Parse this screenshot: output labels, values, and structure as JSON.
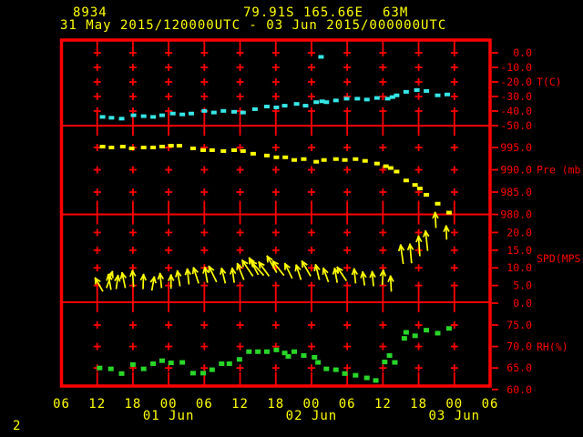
{
  "header": {
    "station_id": "8934",
    "latitude": "79.91S",
    "longitude": "165.66E",
    "elevation": "63M",
    "period": "31 May 2015/120000UTC - 03 Jun 2015/000000UTC"
  },
  "footer": {
    "page_number": "2"
  },
  "colors": {
    "background": "#000000",
    "grid": "#ff0000",
    "text": "#ffff00",
    "temperature": "#35e7e7",
    "pressure": "#ffff00",
    "wind": "#ffff00",
    "humidity": "#28d628"
  },
  "x_axis": {
    "unit": "hours from 31 May 2015 06UTC",
    "span_hours": 72,
    "grid_hours": [
      6,
      12,
      18,
      24,
      30,
      36,
      42,
      48,
      54,
      60,
      66
    ],
    "hour_labels": [
      {
        "label": "06",
        "h": 0
      },
      {
        "label": "12",
        "h": 6
      },
      {
        "label": "18",
        "h": 12
      },
      {
        "label": "00",
        "h": 18
      },
      {
        "label": "06",
        "h": 24
      },
      {
        "label": "12",
        "h": 30
      },
      {
        "label": "18",
        "h": 36
      },
      {
        "label": "00",
        "h": 42
      },
      {
        "label": "06",
        "h": 48
      },
      {
        "label": "12",
        "h": 54
      },
      {
        "label": "18",
        "h": 60
      },
      {
        "label": "00",
        "h": 66
      },
      {
        "label": "06",
        "h": 72
      }
    ],
    "date_labels": [
      {
        "label": "01 Jun",
        "h": 18
      },
      {
        "label": "02 Jun",
        "h": 42
      },
      {
        "label": "03 Jun",
        "h": 66
      }
    ]
  },
  "chart_data": [
    {
      "type": "scatter",
      "name": "temperature",
      "ylabel": "T(C)",
      "legend_position": "right",
      "grid": true,
      "yticks": [
        {
          "label": "0.0",
          "v": 0
        },
        {
          "label": "-10.0",
          "v": -10
        },
        {
          "label": "-20.0",
          "v": -20
        },
        {
          "label": "-30.0",
          "v": -30
        },
        {
          "label": "-40.0",
          "v": -40
        },
        {
          "label": "-50.0",
          "v": -50
        }
      ],
      "ylim": [
        -50,
        0
      ],
      "points": [
        [
          6.9,
          -44.0
        ],
        [
          8.4,
          -44.6
        ],
        [
          10.1,
          -45.2
        ],
        [
          12.1,
          -42.9
        ],
        [
          13.8,
          -43.5
        ],
        [
          15.4,
          -44.0
        ],
        [
          16.9,
          -42.9
        ],
        [
          18.7,
          -41.7
        ],
        [
          20.3,
          -42.3
        ],
        [
          21.8,
          -41.7
        ],
        [
          24.0,
          -39.9
        ],
        [
          25.6,
          -41.0
        ],
        [
          27.2,
          -39.9
        ],
        [
          29.0,
          -40.5
        ],
        [
          30.5,
          -41.0
        ],
        [
          32.5,
          -38.7
        ],
        [
          34.5,
          -36.9
        ],
        [
          36.1,
          -37.5
        ],
        [
          37.5,
          -36.3
        ],
        [
          39.5,
          -35.1
        ],
        [
          41.0,
          -36.3
        ],
        [
          42.8,
          -33.9
        ],
        [
          43.8,
          -33.3
        ],
        [
          44.5,
          -33.9
        ],
        [
          46.1,
          -32.7
        ],
        [
          47.9,
          -31.5
        ],
        [
          49.7,
          -31.5
        ],
        [
          51.3,
          -32.1
        ],
        [
          53.0,
          -31.0
        ],
        [
          54.8,
          -31.5
        ],
        [
          55.6,
          -30.4
        ],
        [
          56.3,
          -29.2
        ],
        [
          57.9,
          -26.8
        ],
        [
          59.7,
          -25.6
        ],
        [
          61.3,
          -26.2
        ],
        [
          63.2,
          -29.2
        ],
        [
          64.8,
          -28.6
        ]
      ],
      "outlier_points": [
        [
          43.6,
          -2.8
        ]
      ]
    },
    {
      "type": "scatter",
      "name": "pressure",
      "ylabel": "Pre (mb)",
      "yticks": [
        {
          "label": "995.0",
          "v": 995
        },
        {
          "label": "990.0",
          "v": 990
        },
        {
          "label": "985.0",
          "v": 985
        },
        {
          "label": "980.0",
          "v": 980
        }
      ],
      "ylim": [
        980,
        995
      ],
      "points": [
        [
          6.9,
          995.2
        ],
        [
          8.4,
          995.0
        ],
        [
          10.3,
          995.2
        ],
        [
          11.8,
          994.8
        ],
        [
          13.8,
          995.0
        ],
        [
          15.4,
          995.0
        ],
        [
          16.9,
          995.2
        ],
        [
          18.4,
          995.4
        ],
        [
          19.8,
          995.4
        ],
        [
          22.1,
          994.8
        ],
        [
          23.8,
          994.4
        ],
        [
          25.3,
          994.4
        ],
        [
          27.2,
          994.2
        ],
        [
          29.0,
          994.4
        ],
        [
          30.5,
          994.2
        ],
        [
          32.2,
          993.6
        ],
        [
          34.5,
          993.2
        ],
        [
          36.1,
          992.8
        ],
        [
          37.6,
          992.8
        ],
        [
          39.1,
          992.2
        ],
        [
          40.7,
          992.4
        ],
        [
          42.8,
          991.8
        ],
        [
          44.1,
          992.2
        ],
        [
          46.1,
          992.4
        ],
        [
          47.6,
          992.2
        ],
        [
          49.4,
          992.4
        ],
        [
          51.0,
          992.0
        ],
        [
          53.0,
          991.4
        ],
        [
          54.5,
          990.8
        ],
        [
          55.3,
          990.4
        ],
        [
          56.3,
          989.6
        ],
        [
          57.9,
          987.6
        ],
        [
          59.4,
          986.6
        ],
        [
          60.2,
          985.8
        ],
        [
          61.3,
          984.4
        ],
        [
          63.2,
          982.4
        ],
        [
          65.1,
          980.4
        ]
      ]
    },
    {
      "type": "wind_arrow",
      "name": "wind-speed",
      "ylabel": "SPD(MPS)",
      "point_format": "[hour, speed_mps, arrow_angle_deg_from_up, arrow_length_px]",
      "yticks": [
        {
          "label": "20.0",
          "v": 20
        },
        {
          "label": "15.0",
          "v": 15
        },
        {
          "label": "10.0",
          "v": 10
        },
        {
          "label": "5.0",
          "v": 5
        },
        {
          "label": "0.0",
          "v": 0
        }
      ],
      "ylim": [
        0,
        25
      ],
      "points": [
        [
          6.9,
          3.5,
          -30,
          16
        ],
        [
          7.6,
          4.5,
          20,
          18
        ],
        [
          8.3,
          4.0,
          -10,
          16
        ],
        [
          9.2,
          4.2,
          8,
          14
        ],
        [
          10.7,
          4.5,
          -12,
          16
        ],
        [
          12.1,
          4.8,
          -4,
          17
        ],
        [
          13.7,
          4.2,
          2,
          15
        ],
        [
          15.2,
          3.8,
          10,
          14
        ],
        [
          16.8,
          4.5,
          -6,
          15
        ],
        [
          18.4,
          4.3,
          0,
          14
        ],
        [
          19.9,
          5.0,
          -10,
          16
        ],
        [
          21.4,
          5.5,
          -6,
          16
        ],
        [
          23.0,
          5.8,
          -18,
          17
        ],
        [
          24.5,
          6.0,
          -10,
          16
        ],
        [
          26.0,
          6.2,
          -26,
          18
        ],
        [
          27.5,
          5.8,
          -14,
          16
        ],
        [
          29.0,
          6.0,
          -8,
          15
        ],
        [
          30.6,
          6.8,
          -22,
          18
        ],
        [
          32.1,
          7.8,
          -34,
          20
        ],
        [
          33.0,
          8.2,
          -28,
          20
        ],
        [
          33.9,
          8.0,
          -42,
          20
        ],
        [
          34.8,
          7.8,
          -36,
          18
        ],
        [
          36.1,
          8.8,
          -30,
          20
        ],
        [
          37.3,
          8.0,
          -38,
          19
        ],
        [
          38.7,
          7.2,
          -26,
          17
        ],
        [
          40.2,
          6.8,
          -18,
          16
        ],
        [
          41.8,
          7.8,
          -30,
          18
        ],
        [
          43.3,
          6.8,
          -14,
          16
        ],
        [
          44.8,
          6.2,
          -20,
          15
        ],
        [
          46.3,
          6.0,
          -10,
          15
        ],
        [
          47.8,
          6.5,
          -34,
          17
        ],
        [
          49.4,
          5.8,
          -6,
          15
        ],
        [
          50.9,
          5.2,
          -8,
          14
        ],
        [
          52.4,
          5.0,
          -5,
          15
        ],
        [
          53.9,
          5.4,
          4,
          15
        ],
        [
          55.4,
          3.5,
          -3,
          16
        ],
        [
          57.4,
          11.3,
          -8,
          20
        ],
        [
          58.8,
          11.5,
          -5,
          20
        ],
        [
          60.2,
          13.5,
          -4,
          21
        ],
        [
          61.5,
          15.0,
          -6,
          21
        ],
        [
          62.9,
          21.5,
          -3,
          16
        ],
        [
          64.7,
          18.2,
          -2,
          14
        ]
      ]
    },
    {
      "type": "scatter",
      "name": "relative-humidity",
      "ylabel": "RH(%)",
      "yticks": [
        {
          "label": "75.0",
          "v": 75
        },
        {
          "label": "70.0",
          "v": 70
        },
        {
          "label": "65.0",
          "v": 65
        },
        {
          "label": "60.0",
          "v": 60
        }
      ],
      "ylim": [
        60,
        75
      ],
      "points": [
        [
          6.4,
          65.0
        ],
        [
          8.3,
          64.8
        ],
        [
          10.1,
          63.7
        ],
        [
          12.0,
          65.8
        ],
        [
          13.8,
          64.8
        ],
        [
          15.4,
          66.0
        ],
        [
          16.9,
          66.7
        ],
        [
          18.4,
          66.2
        ],
        [
          20.3,
          66.3
        ],
        [
          22.1,
          63.8
        ],
        [
          23.8,
          63.8
        ],
        [
          25.3,
          64.6
        ],
        [
          26.9,
          66.0
        ],
        [
          28.2,
          66.0
        ],
        [
          29.9,
          67.0
        ],
        [
          31.5,
          68.8
        ],
        [
          33.0,
          68.8
        ],
        [
          34.5,
          68.8
        ],
        [
          36.1,
          69.2
        ],
        [
          37.5,
          68.5
        ],
        [
          38.1,
          67.7
        ],
        [
          39.1,
          68.8
        ],
        [
          40.7,
          67.9
        ],
        [
          42.5,
          67.5
        ],
        [
          43.1,
          66.3
        ],
        [
          44.5,
          64.8
        ],
        [
          46.1,
          64.6
        ],
        [
          47.6,
          63.7
        ],
        [
          49.4,
          63.3
        ],
        [
          51.3,
          62.7
        ],
        [
          52.8,
          62.1
        ],
        [
          54.3,
          66.4
        ],
        [
          55.1,
          67.9
        ],
        [
          56.0,
          66.3
        ],
        [
          57.6,
          71.9
        ],
        [
          57.9,
          73.3
        ],
        [
          59.4,
          72.5
        ],
        [
          61.3,
          73.8
        ],
        [
          63.2,
          73.1
        ],
        [
          65.1,
          74.2
        ]
      ]
    }
  ]
}
